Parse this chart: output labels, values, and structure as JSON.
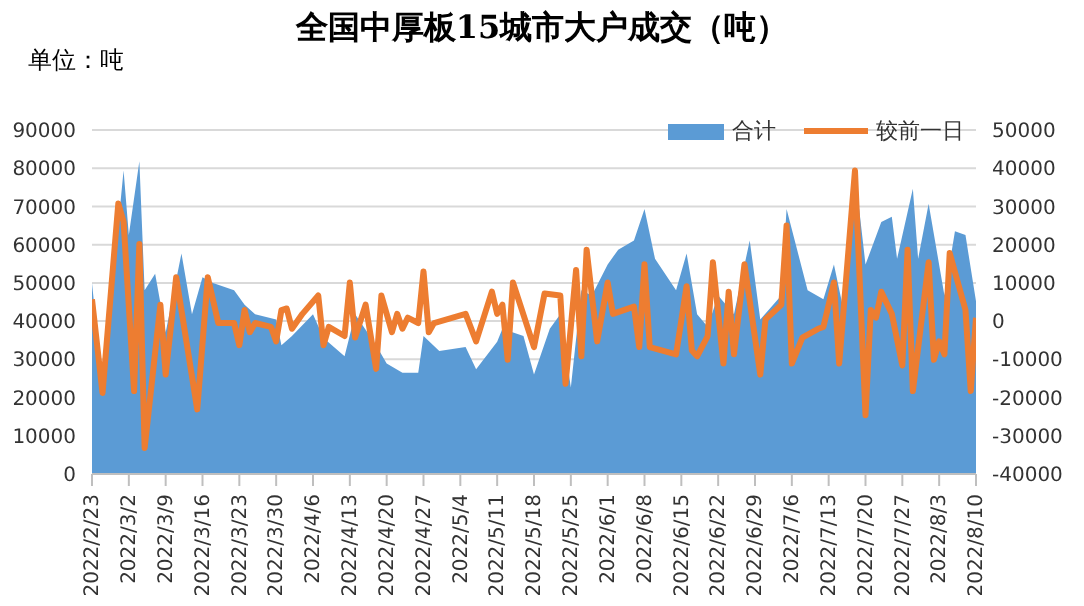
{
  "chart_data": {
    "type": "area",
    "title": "全国中厚板15城市大户成交（吨）",
    "ylabel": "单位：吨",
    "grid": "y",
    "legend": "top right",
    "xlim": [
      "2022-02-23",
      "2022-08-10"
    ],
    "xticks": [
      {
        "value": "2022-02-23",
        "label": "2022/2/23"
      },
      {
        "value": "2022-03-02",
        "label": "2022/3/2"
      },
      {
        "value": "2022-03-09",
        "label": "2022/3/9"
      },
      {
        "value": "2022-03-16",
        "label": "2022/3/16"
      },
      {
        "value": "2022-03-23",
        "label": "2022/3/23"
      },
      {
        "value": "2022-03-30",
        "label": "2022/3/30"
      },
      {
        "value": "2022-04-06",
        "label": "2022/4/6"
      },
      {
        "value": "2022-04-13",
        "label": "2022/4/13"
      },
      {
        "value": "2022-04-20",
        "label": "2022/4/20"
      },
      {
        "value": "2022-04-27",
        "label": "2022/4/27"
      },
      {
        "value": "2022-05-04",
        "label": "2022/5/4"
      },
      {
        "value": "2022-05-11",
        "label": "2022/5/11"
      },
      {
        "value": "2022-05-18",
        "label": "2022/5/18"
      },
      {
        "value": "2022-05-25",
        "label": "2022/5/25"
      },
      {
        "value": "2022-06-01",
        "label": "2022/6/1"
      },
      {
        "value": "2022-06-08",
        "label": "2022/6/8"
      },
      {
        "value": "2022-06-15",
        "label": "2022/6/15"
      },
      {
        "value": "2022-06-22",
        "label": "2022/6/22"
      },
      {
        "value": "2022-06-29",
        "label": "2022/6/29"
      },
      {
        "value": "2022-07-06",
        "label": "2022/7/6"
      },
      {
        "value": "2022-07-13",
        "label": "2022/7/13"
      },
      {
        "value": "2022-07-20",
        "label": "2022/7/20"
      },
      {
        "value": "2022-07-27",
        "label": "2022/7/27"
      },
      {
        "value": "2022-08-03",
        "label": "2022/8/3"
      },
      {
        "value": "2022-08-10",
        "label": "2022/8/10"
      }
    ],
    "ylim": [
      0,
      90000
    ],
    "yticks": [
      0,
      10000,
      20000,
      30000,
      40000,
      50000,
      60000,
      70000,
      80000,
      90000
    ],
    "y2lim": [
      -40000,
      50000
    ],
    "y2ticks": [
      -40000,
      -30000,
      -20000,
      -10000,
      0,
      10000,
      20000,
      30000,
      40000,
      50000
    ],
    "series": [
      {
        "name": "合计",
        "color": "#5b9bd5",
        "x": [
          "2022-02-23",
          "2022-02-25",
          "2022-03-01",
          "2022-03-02",
          "2022-03-04",
          "2022-03-05",
          "2022-03-07",
          "2022-03-09",
          "2022-03-12",
          "2022-03-14",
          "2022-03-16",
          "2022-03-18",
          "2022-03-22",
          "2022-03-24",
          "2022-03-26",
          "2022-03-30",
          "2022-03-31",
          "2022-04-02",
          "2022-04-06",
          "2022-04-08",
          "2022-04-12",
          "2022-04-14",
          "2022-04-18",
          "2022-04-20",
          "2022-04-23",
          "2022-04-26",
          "2022-04-27",
          "2022-04-30",
          "2022-05-05",
          "2022-05-07",
          "2022-05-11",
          "2022-05-12",
          "2022-05-16",
          "2022-05-18",
          "2022-05-21",
          "2022-05-23",
          "2022-05-25",
          "2022-05-27",
          "2022-05-29",
          "2022-06-01",
          "2022-06-03",
          "2022-06-06",
          "2022-06-08",
          "2022-06-10",
          "2022-06-14",
          "2022-06-16",
          "2022-06-18",
          "2022-06-20",
          "2022-06-22",
          "2022-06-25",
          "2022-06-28",
          "2022-06-30",
          "2022-07-04",
          "2022-07-05",
          "2022-07-09",
          "2022-07-12",
          "2022-07-14",
          "2022-07-16",
          "2022-07-18",
          "2022-07-20",
          "2022-07-23",
          "2022-07-25",
          "2022-07-26",
          "2022-07-29",
          "2022-07-30",
          "2022-08-01",
          "2022-08-04",
          "2022-08-06",
          "2022-08-08",
          "2022-08-10"
        ],
        "values": [
          50000,
          22600,
          79400,
          62500,
          81800,
          48100,
          52400,
          37000,
          57700,
          41800,
          51500,
          50000,
          48100,
          44300,
          41800,
          40400,
          33700,
          36100,
          41800,
          35600,
          30800,
          41800,
          33700,
          28900,
          26500,
          26500,
          36100,
          32200,
          33200,
          27400,
          34600,
          38000,
          36100,
          26000,
          38000,
          41800,
          22600,
          48100,
          46700,
          54800,
          58700,
          61100,
          69300,
          56300,
          48100,
          57700,
          41800,
          38500,
          46700,
          41800,
          61100,
          40400,
          46700,
          69300,
          48100,
          45700,
          54800,
          41800,
          78900,
          54800,
          65900,
          67300,
          56300,
          74600,
          56300,
          70700,
          46700,
          63500,
          62500,
          45200
        ]
      },
      {
        "name": "较前一日",
        "type": "line",
        "axis": "y2",
        "color": "#ed7d31",
        "x": [
          "2022-02-23",
          "2022-02-25",
          "2022-02-28",
          "2022-03-01",
          "2022-03-03",
          "2022-03-04",
          "2022-03-05",
          "2022-03-08",
          "2022-03-09",
          "2022-03-11",
          "2022-03-15",
          "2022-03-17",
          "2022-03-19",
          "2022-03-22",
          "2022-03-23",
          "2022-03-24",
          "2022-03-25",
          "2022-03-26",
          "2022-03-29",
          "2022-03-30",
          "2022-03-31",
          "2022-04-01",
          "2022-04-02",
          "2022-04-04",
          "2022-04-07",
          "2022-04-08",
          "2022-04-09",
          "2022-04-12",
          "2022-04-13",
          "2022-04-14",
          "2022-04-16",
          "2022-04-18",
          "2022-04-19",
          "2022-04-21",
          "2022-04-22",
          "2022-04-23",
          "2022-04-24",
          "2022-04-26",
          "2022-04-27",
          "2022-04-28",
          "2022-04-29",
          "2022-05-05",
          "2022-05-07",
          "2022-05-10",
          "2022-05-11",
          "2022-05-12",
          "2022-05-13",
          "2022-05-14",
          "2022-05-18",
          "2022-05-20",
          "2022-05-23",
          "2022-05-24",
          "2022-05-26",
          "2022-05-27",
          "2022-05-28",
          "2022-05-30",
          "2022-06-01",
          "2022-06-02",
          "2022-06-06",
          "2022-06-07",
          "2022-06-08",
          "2022-06-09",
          "2022-06-14",
          "2022-06-16",
          "2022-06-17",
          "2022-06-18",
          "2022-06-20",
          "2022-06-21",
          "2022-06-23",
          "2022-06-24",
          "2022-06-25",
          "2022-06-27",
          "2022-06-30",
          "2022-07-01",
          "2022-07-04",
          "2022-07-05",
          "2022-07-06",
          "2022-07-08",
          "2022-07-11",
          "2022-07-12",
          "2022-07-14",
          "2022-07-15",
          "2022-07-18",
          "2022-07-20",
          "2022-07-21",
          "2022-07-22",
          "2022-07-23",
          "2022-07-25",
          "2022-07-27",
          "2022-07-28",
          "2022-07-29",
          "2022-08-01",
          "2022-08-02",
          "2022-08-03",
          "2022-08-04",
          "2022-08-05",
          "2022-08-08",
          "2022-08-09",
          "2022-08-10"
        ],
        "values": [
          5700,
          -18800,
          30800,
          26000,
          -18300,
          20200,
          -33200,
          4300,
          -14000,
          11500,
          -23100,
          11500,
          -500,
          -500,
          -6300,
          2900,
          -2900,
          -500,
          -1500,
          -5300,
          2900,
          3300,
          -2000,
          1900,
          6700,
          -6300,
          -1500,
          -3900,
          10100,
          -4300,
          4300,
          -12500,
          6700,
          -2900,
          1900,
          -2000,
          900,
          -500,
          13000,
          -2900,
          -500,
          1900,
          -5300,
          7700,
          1900,
          4300,
          -10100,
          10100,
          -6800,
          7200,
          6700,
          -16400,
          13400,
          -9200,
          18700,
          -5300,
          10100,
          1900,
          3800,
          -6800,
          14900,
          -6800,
          -8700,
          9100,
          -7700,
          -9200,
          -3900,
          15400,
          -11100,
          7700,
          -8700,
          14900,
          -14000,
          500,
          4300,
          25000,
          -11100,
          -4300,
          -2000,
          -1500,
          10100,
          -11100,
          39400,
          -24600,
          2900,
          900,
          7700,
          1900,
          -11600,
          18700,
          -18300,
          15400,
          -10100,
          -5300,
          -8700,
          17800,
          2900,
          -18300,
          900
        ]
      }
    ]
  }
}
